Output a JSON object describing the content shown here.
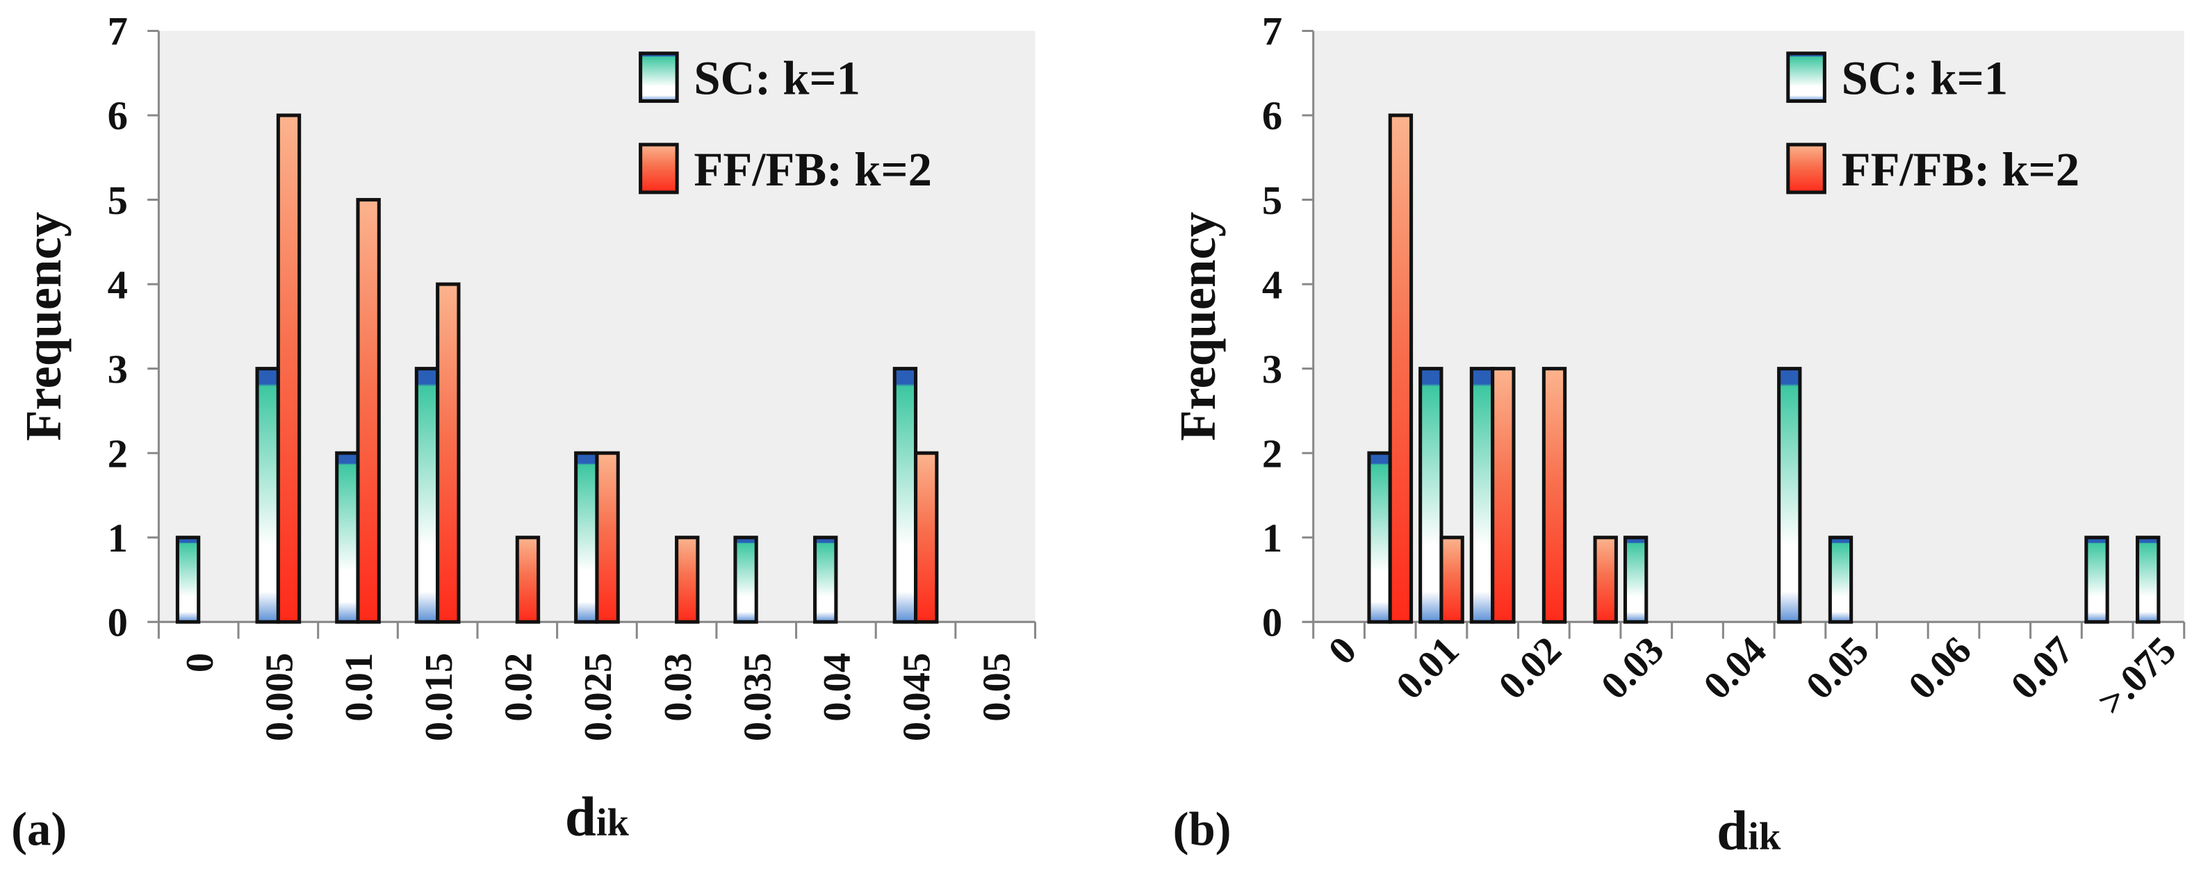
{
  "chart_data": [
    {
      "type": "bar",
      "panel_label": "(a)",
      "y_label": "Frequency",
      "x_label": "d",
      "x_label_sub": "ik",
      "categories": [
        "0",
        "0.005",
        "0.01",
        "0.015",
        "0.02",
        "0.025",
        "0.03",
        "0.035",
        "0.04",
        "0.045",
        "0.05"
      ],
      "series": [
        {
          "name": "SC: k=1",
          "color": "#3cc7a0",
          "values": [
            1,
            3,
            2,
            3,
            0,
            2,
            0,
            1,
            1,
            3,
            0
          ]
        },
        {
          "name": "FF/FB: k=2",
          "color": "#ff2a1a",
          "values": [
            0,
            6,
            5,
            4,
            1,
            2,
            1,
            0,
            0,
            2,
            0
          ]
        }
      ],
      "ylim": [
        0,
        7
      ],
      "yticks": [
        0,
        1,
        2,
        3,
        4,
        5,
        6,
        7
      ],
      "legend": "upper right"
    },
    {
      "type": "bar",
      "panel_label": "(b)",
      "y_label": "Frequency",
      "x_label": "d",
      "x_label_sub": "ik",
      "categories": [
        "0",
        null,
        "0.01",
        null,
        "0.02",
        null,
        "0.03",
        null,
        "0.04",
        null,
        "0.05",
        null,
        "0.06",
        null,
        "0.07",
        null,
        ">.075"
      ],
      "series": [
        {
          "name": "SC: k=1",
          "color": "#3cc7a0",
          "values": [
            0,
            2,
            3,
            3,
            0,
            0,
            1,
            0,
            0,
            3,
            1,
            0,
            0,
            0,
            0,
            1,
            1
          ]
        },
        {
          "name": "FF/FB: k=2",
          "color": "#ff2a1a",
          "values": [
            0,
            6,
            1,
            3,
            3,
            1,
            0,
            0,
            0,
            0,
            0,
            0,
            0,
            0,
            0,
            0,
            0
          ]
        }
      ],
      "ylim": [
        0,
        7
      ],
      "yticks": [
        0,
        1,
        2,
        3,
        4,
        5,
        6,
        7
      ],
      "legend": "upper right"
    }
  ]
}
